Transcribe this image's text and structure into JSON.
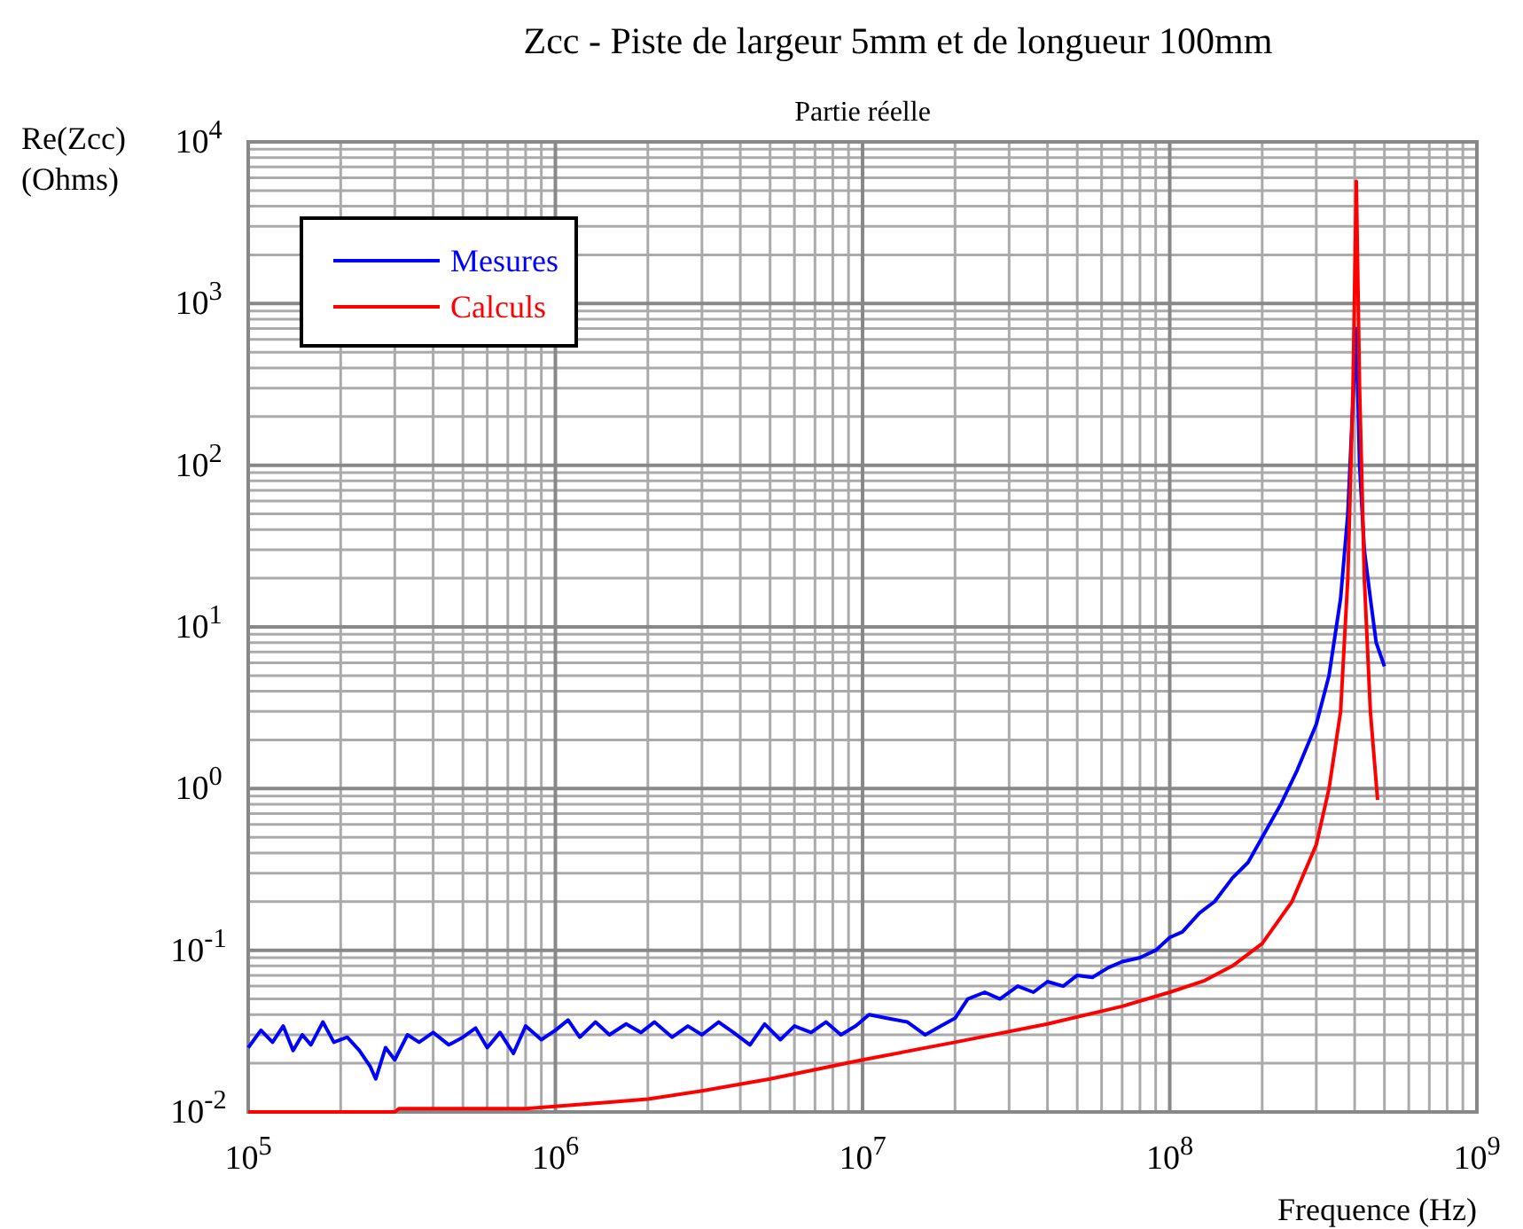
{
  "chart_data": {
    "type": "line",
    "title": "Zcc - Piste de largeur 5mm et de longueur 100mm",
    "subtitle": "Partie réelle",
    "xlabel": "Frequence (Hz)",
    "ylabel": "Re(Zcc)\n(Ohms)",
    "log": "xy",
    "grid": true,
    "legend": "top left",
    "line_style": "solid",
    "marker": "none",
    "xlim": [
      100000.0,
      1000000000.0
    ],
    "xticks": [
      {
        "value": 100000.0,
        "label": "10$^{5}$"
      },
      {
        "value": 1000000.0,
        "label": "10$^{6}$"
      },
      {
        "value": 10000000.0,
        "label": "10$^{7}$"
      },
      {
        "value": 100000000.0,
        "label": "10$^{8}$"
      },
      {
        "value": 1000000000.0,
        "label": "10$^{9}$"
      }
    ],
    "ylim": [
      0.01,
      10000
    ],
    "yticks": [
      {
        "value": 0.01,
        "label": "10$^{-2}$"
      },
      {
        "value": 0.1,
        "label": "10$^{-1}$"
      },
      {
        "value": 1,
        "label": "10$^{0}$"
      },
      {
        "value": 10,
        "label": "10$^{1}$"
      },
      {
        "value": 100,
        "label": "10$^{2}$"
      },
      {
        "value": 1000,
        "label": "10$^{3}$"
      },
      {
        "value": 10000,
        "label": "10$^{4}$"
      }
    ],
    "series": [
      {
        "name": "Mesures",
        "color": "#0000ff",
        "x": [
          100000.0,
          110000.0,
          120000.0,
          130000.0,
          140000.0,
          150000.0,
          160000.0,
          175000.0,
          190000.0,
          210000.0,
          230000.0,
          250000.0,
          260000.0,
          280000.0,
          300000.0,
          330000.0,
          360000.0,
          400000.0,
          450000.0,
          500000.0,
          550000.0,
          600000.0,
          660000.0,
          730000.0,
          800000.0,
          900000.0,
          1000000.0,
          1100000.0,
          1200000.0,
          1350000.0,
          1500000.0,
          1700000.0,
          1900000.0,
          2100000.0,
          2400000.0,
          2700000.0,
          3000000.0,
          3400000.0,
          3800000.0,
          4300000.0,
          4800000.0,
          5400000.0,
          6000000.0,
          6800000.0,
          7600000.0,
          8500000.0,
          9500000.0,
          10500000.0,
          12000000.0,
          14000000.0,
          16000000.0,
          18000000.0,
          20000000.0,
          22000000.0,
          25000000.0,
          28000000.0,
          32000000.0,
          36000000.0,
          40000000.0,
          45000000.0,
          50000000.0,
          56000000.0,
          63000000.0,
          70000000.0,
          80000000.0,
          90000000.0,
          100000000.0,
          110000000.0,
          125000000.0,
          140000000.0,
          160000000.0,
          180000000.0,
          200000000.0,
          230000000.0,
          260000000.0,
          300000000.0,
          330000000.0,
          360000000.0,
          380000000.0,
          395000000.0,
          405000000.0,
          415000000.0,
          430000000.0,
          450000000.0,
          470000000.0,
          500000000.0
        ],
        "values": [
          0.025,
          0.032,
          0.027,
          0.034,
          0.024,
          0.03,
          0.026,
          0.036,
          0.027,
          0.029,
          0.024,
          0.019,
          0.016,
          0.025,
          0.021,
          0.03,
          0.027,
          0.031,
          0.026,
          0.029,
          0.033,
          0.025,
          0.031,
          0.023,
          0.034,
          0.028,
          0.032,
          0.037,
          0.029,
          0.036,
          0.03,
          0.035,
          0.031,
          0.036,
          0.029,
          0.034,
          0.03,
          0.036,
          0.031,
          0.026,
          0.035,
          0.028,
          0.034,
          0.031,
          0.036,
          0.03,
          0.034,
          0.04,
          0.038,
          0.036,
          0.03,
          0.034,
          0.038,
          0.05,
          0.055,
          0.05,
          0.06,
          0.055,
          0.064,
          0.06,
          0.07,
          0.068,
          0.078,
          0.085,
          0.09,
          0.1,
          0.12,
          0.13,
          0.17,
          0.2,
          0.28,
          0.35,
          0.5,
          0.8,
          1.3,
          2.5,
          5,
          15,
          50,
          250,
          700,
          100,
          30,
          15,
          8,
          5.7
        ]
      },
      {
        "name": "Calculs",
        "color": "#ff0000",
        "x": [
          100000.0,
          300000.0,
          310000.0,
          800000.0,
          1500000.0,
          2000000.0,
          3000000.0,
          5000000.0,
          10000000.0,
          20000000.0,
          40000000.0,
          70000000.0,
          100000000.0,
          130000000.0,
          160000000.0,
          200000000.0,
          250000000.0,
          300000000.0,
          330000000.0,
          360000000.0,
          380000000.0,
          395000000.0,
          405000000.0,
          415000000.0,
          430000000.0,
          450000000.0,
          475000000.0
        ],
        "values": [
          0.01,
          0.01,
          0.0105,
          0.0105,
          0.0115,
          0.012,
          0.0135,
          0.016,
          0.021,
          0.027,
          0.035,
          0.045,
          0.055,
          0.065,
          0.08,
          0.11,
          0.2,
          0.45,
          1,
          3,
          20,
          300,
          5700,
          300,
          20,
          3,
          0.85
        ]
      }
    ]
  }
}
